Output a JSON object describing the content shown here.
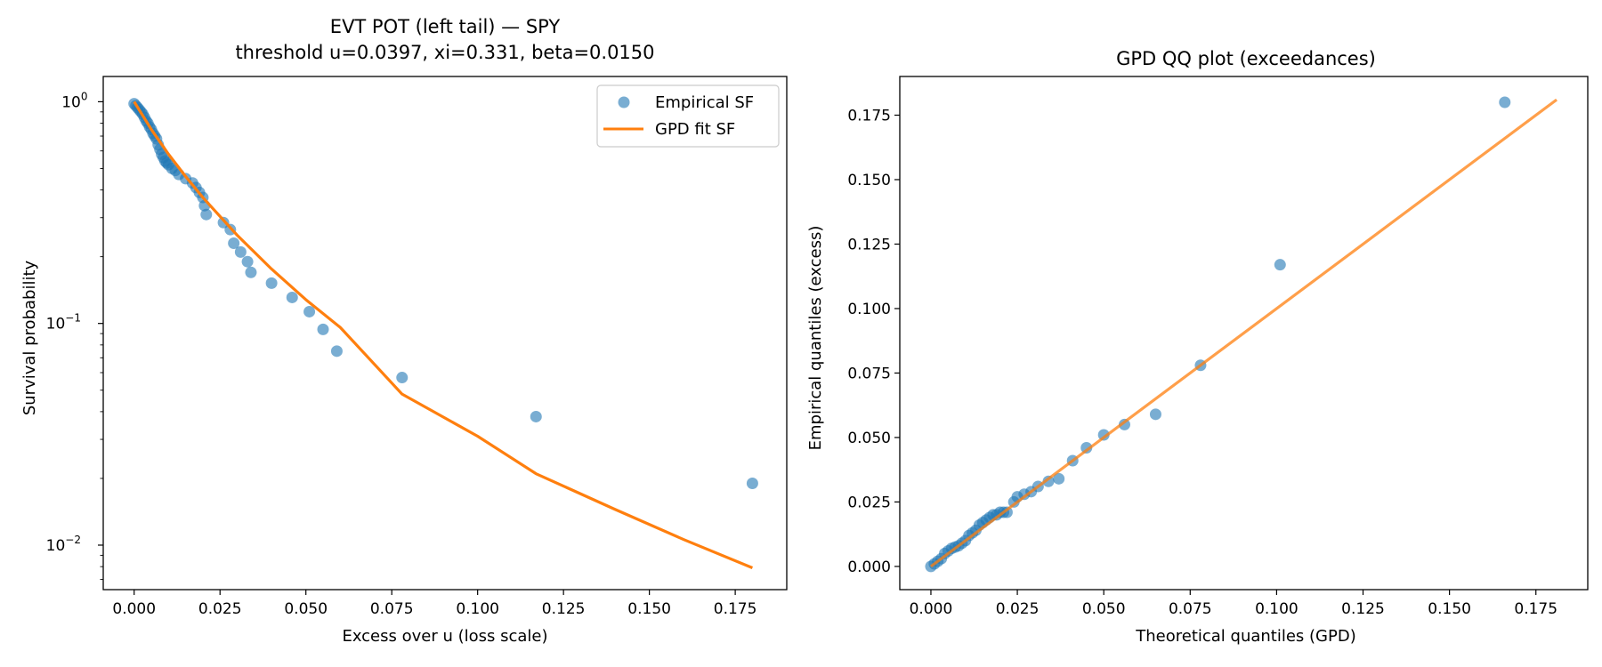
{
  "figure": {
    "left_title_line1": "EVT POT (left tail) — SPY",
    "left_title_line2": "threshold u=0.0397, xi=0.331, beta=0.0150",
    "right_title": "GPD QQ plot (exceedances)"
  },
  "colors": {
    "point": "#1f77b4",
    "fit_line": "#ff7f0e"
  },
  "chart_data": [
    {
      "type": "scatter",
      "scale": "log-y",
      "title": "EVT POT (left tail) — SPY\nthreshold u=0.0397, xi=0.331, beta=0.0150",
      "xlabel": "Excess over u (loss scale)",
      "ylabel": "Survival probability",
      "xlim": [
        -0.009,
        0.19
      ],
      "ylim": [
        0.0063,
        1.3
      ],
      "xticks": [
        0.0,
        0.025,
        0.05,
        0.075,
        0.1,
        0.125,
        0.15,
        0.175
      ],
      "xtick_labels": [
        "0.000",
        "0.025",
        "0.050",
        "0.075",
        "0.100",
        "0.125",
        "0.150",
        "0.175"
      ],
      "yticks": [
        0.01,
        0.1,
        1
      ],
      "ytick_labels": [
        "10",
        "10",
        "10"
      ],
      "ytick_exponents": [
        "−2",
        "−1",
        "0"
      ],
      "legend": {
        "position": "top-right",
        "entries": [
          "Empirical SF",
          "GPD fit SF"
        ]
      },
      "series": [
        {
          "name": "Empirical SF",
          "type": "scatter",
          "x": [
            0.0,
            0.0005,
            0.001,
            0.0015,
            0.002,
            0.0025,
            0.003,
            0.0035,
            0.004,
            0.0045,
            0.005,
            0.0055,
            0.006,
            0.0065,
            0.007,
            0.0075,
            0.008,
            0.0085,
            0.009,
            0.0095,
            0.01,
            0.011,
            0.012,
            0.013,
            0.015,
            0.017,
            0.018,
            0.019,
            0.02,
            0.0205,
            0.021,
            0.026,
            0.028,
            0.029,
            0.031,
            0.033,
            0.034,
            0.04,
            0.046,
            0.051,
            0.055,
            0.059,
            0.078,
            0.117,
            0.18
          ],
          "y": [
            0.98,
            0.96,
            0.94,
            0.92,
            0.9,
            0.88,
            0.85,
            0.82,
            0.8,
            0.77,
            0.75,
            0.72,
            0.7,
            0.68,
            0.64,
            0.61,
            0.58,
            0.56,
            0.54,
            0.53,
            0.52,
            0.5,
            0.49,
            0.47,
            0.45,
            0.43,
            0.41,
            0.39,
            0.37,
            0.34,
            0.31,
            0.285,
            0.265,
            0.23,
            0.21,
            0.19,
            0.17,
            0.152,
            0.131,
            0.113,
            0.094,
            0.075,
            0.057,
            0.038,
            0.019
          ]
        },
        {
          "name": "GPD fit SF",
          "type": "line",
          "x": [
            0.0,
            0.005,
            0.01,
            0.015,
            0.02,
            0.03,
            0.04,
            0.05,
            0.06,
            0.078,
            0.1,
            0.117,
            0.14,
            0.16,
            0.18
          ],
          "y": [
            1.0,
            0.75,
            0.58,
            0.46,
            0.37,
            0.25,
            0.176,
            0.128,
            0.096,
            0.048,
            0.031,
            0.021,
            0.0145,
            0.0106,
            0.0079
          ]
        }
      ]
    },
    {
      "type": "scatter",
      "title": "GPD QQ plot (exceedances)",
      "xlabel": "Theoretical quantiles (GPD)",
      "ylabel": "Empirical quantiles (excess)",
      "xlim": [
        -0.009,
        0.19
      ],
      "ylim": [
        -0.009,
        0.19
      ],
      "xticks": [
        0.0,
        0.025,
        0.05,
        0.075,
        0.1,
        0.125,
        0.15,
        0.175
      ],
      "xtick_labels": [
        "0.000",
        "0.025",
        "0.050",
        "0.075",
        "0.100",
        "0.125",
        "0.150",
        "0.175"
      ],
      "yticks": [
        0.0,
        0.025,
        0.05,
        0.075,
        0.1,
        0.125,
        0.15,
        0.175
      ],
      "ytick_labels": [
        "0.000",
        "0.025",
        "0.050",
        "0.075",
        "0.100",
        "0.125",
        "0.150",
        "0.175"
      ],
      "series": [
        {
          "type": "scatter",
          "x": [
            0.0,
            0.001,
            0.002,
            0.003,
            0.004,
            0.005,
            0.006,
            0.007,
            0.008,
            0.009,
            0.01,
            0.011,
            0.012,
            0.013,
            0.014,
            0.015,
            0.016,
            0.017,
            0.018,
            0.019,
            0.02,
            0.021,
            0.022,
            0.024,
            0.025,
            0.027,
            0.029,
            0.031,
            0.034,
            0.037,
            0.041,
            0.045,
            0.05,
            0.056,
            0.065,
            0.078,
            0.101,
            0.166
          ],
          "y": [
            0.0,
            0.001,
            0.002,
            0.003,
            0.005,
            0.006,
            0.007,
            0.0075,
            0.008,
            0.009,
            0.01,
            0.012,
            0.013,
            0.014,
            0.016,
            0.017,
            0.018,
            0.019,
            0.02,
            0.02,
            0.021,
            0.021,
            0.021,
            0.025,
            0.027,
            0.028,
            0.029,
            0.031,
            0.033,
            0.034,
            0.041,
            0.046,
            0.051,
            0.055,
            0.059,
            0.078,
            0.117,
            0.18
          ]
        },
        {
          "type": "line",
          "x": [
            0.0,
            0.181
          ],
          "y": [
            0.0,
            0.181
          ]
        }
      ]
    }
  ]
}
